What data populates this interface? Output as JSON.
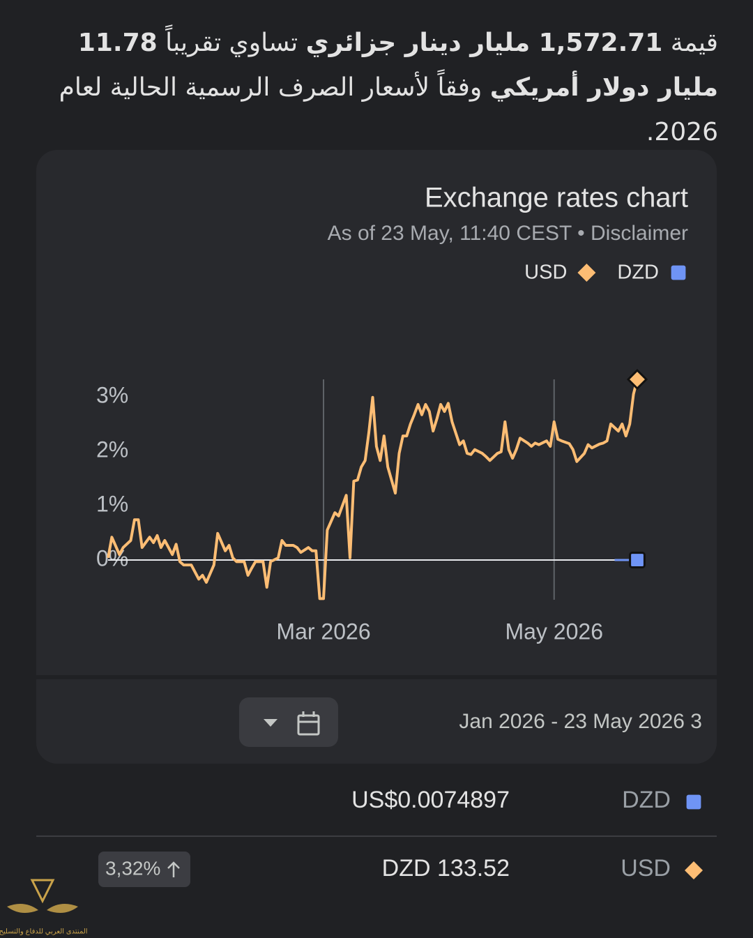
{
  "summary": [
    {
      "text": "قيمة "
    },
    {
      "text": "1,572.71 مليار دينار جزائري",
      "bold": true
    },
    {
      "text": " تساوي تقريباً "
    },
    {
      "text": "11.78 مليار دولار أمريكي",
      "bold": true
    },
    {
      "text": " وفقاً لأسعار الصرف الرسمية الحالية لعام 2026."
    }
  ],
  "chart_data": {
    "type": "line",
    "title": "Exchange rates chart",
    "subtitle": "As of 23 May, 11:40 CEST",
    "separator": "•",
    "disclaimer": "Disclaimer",
    "xlim": [
      3,
      143
    ],
    "xticks": [
      {
        "value": 60,
        "label": "Mar 2026"
      },
      {
        "value": 121,
        "label": "May 2026"
      }
    ],
    "ylim": [
      -0.73,
      3.32
    ],
    "yticks": [
      {
        "value": 0,
        "label": "0%"
      },
      {
        "value": 1,
        "label": "1%"
      },
      {
        "value": 2,
        "label": "2%"
      },
      {
        "value": 3,
        "label": "3%"
      }
    ],
    "series": [
      {
        "name": "USD",
        "color": "#fdbd74",
        "x": [
          3,
          4,
          6,
          7,
          9,
          10,
          11,
          12,
          14,
          15,
          16,
          17,
          18,
          20,
          21,
          22,
          23,
          24,
          25,
          27,
          28,
          29,
          31,
          32,
          34,
          35,
          36,
          37,
          39,
          40,
          41,
          42,
          44,
          45,
          46,
          48,
          49,
          50,
          52,
          53,
          54,
          56,
          57,
          58,
          59,
          60,
          61,
          63,
          64,
          66,
          67,
          68,
          69,
          70,
          71,
          72,
          73,
          74,
          75,
          76,
          77,
          79,
          80,
          81,
          82,
          83,
          84,
          85,
          86,
          87,
          88,
          89,
          90,
          91,
          92,
          93,
          94,
          96,
          97,
          98,
          99,
          100,
          102,
          103,
          104,
          106,
          107,
          108,
          109,
          110,
          111,
          112,
          114,
          115,
          116,
          117,
          119,
          120,
          121,
          122,
          123,
          125,
          126,
          127,
          129,
          130,
          131,
          133,
          134,
          135,
          136,
          138,
          139,
          140,
          141,
          142,
          143
        ],
        "values": [
          0.04,
          0.42,
          0.1,
          0.23,
          0.36,
          0.74,
          0.74,
          0.23,
          0.42,
          0.32,
          0.45,
          0.23,
          0.36,
          0.1,
          0.29,
          -0.03,
          -0.09,
          -0.09,
          -0.09,
          -0.35,
          -0.28,
          -0.41,
          -0.09,
          0.49,
          0.17,
          0.27,
          0.04,
          -0.03,
          -0.03,
          -0.28,
          -0.15,
          -0.03,
          -0.03,
          -0.5,
          -0.03,
          0.04,
          0.36,
          0.27,
          0.27,
          0.23,
          0.14,
          0.23,
          0.17,
          0.17,
          -0.71,
          -0.71,
          0.55,
          0.87,
          0.81,
          1.19,
          0.04,
          1.45,
          1.47,
          1.71,
          1.83,
          2.35,
          2.99,
          2.09,
          1.83,
          2.28,
          1.71,
          1.23,
          1.96,
          2.28,
          2.28,
          2.5,
          2.67,
          2.86,
          2.67,
          2.86,
          2.73,
          2.37,
          2.6,
          2.86,
          2.73,
          2.88,
          2.54,
          2.12,
          2.19,
          1.96,
          1.94,
          2.03,
          1.96,
          1.9,
          1.83,
          1.96,
          1.99,
          2.54,
          2.03,
          1.87,
          2.03,
          2.24,
          2.15,
          2.09,
          2.15,
          2.12,
          2.19,
          2.09,
          2.54,
          2.22,
          2.19,
          2.14,
          2.03,
          1.81,
          1.96,
          2.12,
          2.06,
          2.13,
          2.15,
          2.19,
          2.5,
          2.37,
          2.5,
          2.28,
          2.5,
          3.05,
          3.32
        ]
      },
      {
        "name": "DZD",
        "color": "#6f94f5",
        "x": [
          137,
          143
        ],
        "values": [
          0,
          0
        ]
      }
    ]
  },
  "range": {
    "text": "Jan 2026 - 23 May 2026 3"
  },
  "rows": [
    {
      "currency": "DZD",
      "rate": "US$0.0074897"
    },
    {
      "currency": "USD",
      "rate": "DZD 133.52",
      "change": "3,32%"
    }
  ],
  "watermark": "المنتدى العربي للدفاع والتسليح"
}
